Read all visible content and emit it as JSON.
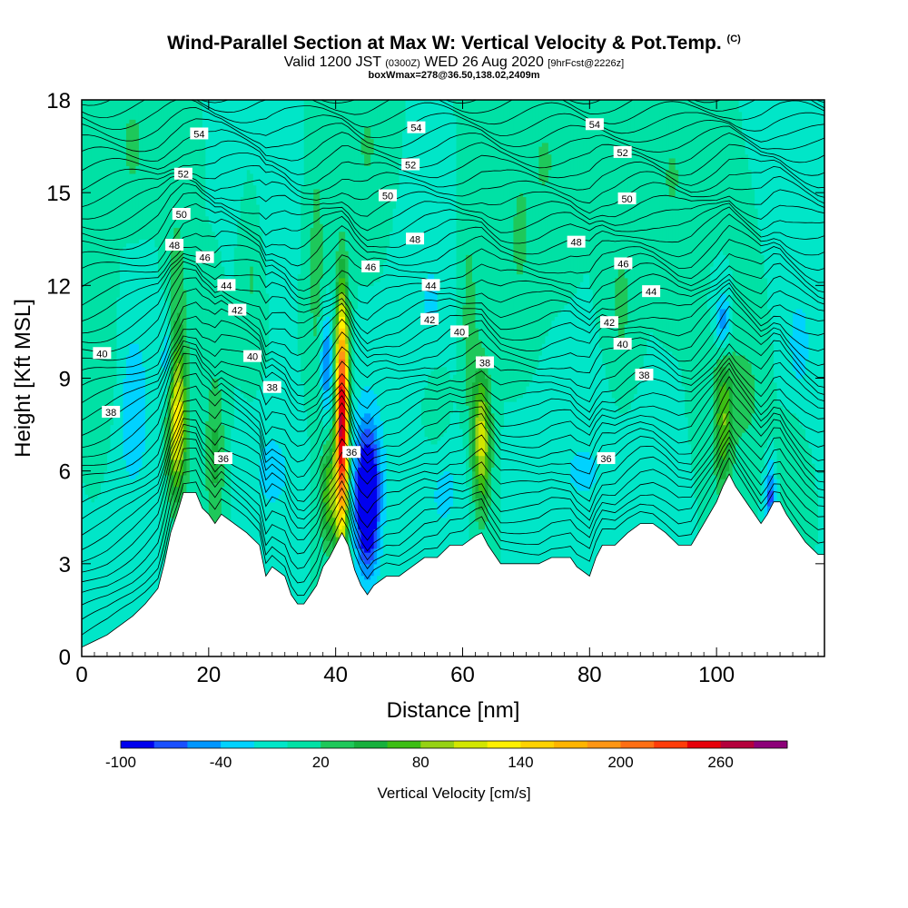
{
  "header": {
    "title": "Wind-Parallel Section at Max W: Vertical Velocity & Pot.Temp.",
    "title_mark": "(C)",
    "valid_pre": "Valid 1200 JST ",
    "valid_z": "(0300Z)",
    "valid_post": " WED 26 Aug 2020 ",
    "fcst": "[9hrFcst@2226z]",
    "box": "boxWmax=278@36.50,138.02,2409m"
  },
  "chart_data": {
    "type": "heatmap",
    "title": "Wind-Parallel Section at Max W: Vertical Velocity & Pot.Temp.",
    "xlabel": "Distance [nm]",
    "ylabel": "Height [Kft MSL]",
    "xlim": [
      0,
      117
    ],
    "ylim": [
      0,
      18
    ],
    "xticks": [
      0,
      20,
      40,
      60,
      80,
      100
    ],
    "yticks": [
      0,
      3,
      6,
      9,
      12,
      15,
      18
    ],
    "colorbar": {
      "label": "Vertical Velocity [cm/s]",
      "ticks": [
        -100,
        -40,
        20,
        80,
        140,
        200,
        260
      ],
      "levels": [
        -100,
        -80,
        -60,
        -40,
        -20,
        0,
        20,
        40,
        60,
        80,
        100,
        120,
        140,
        160,
        180,
        200,
        220,
        240,
        260,
        280,
        300
      ],
      "colors": [
        "#0000ee",
        "#1a50ff",
        "#0096ff",
        "#00d2ff",
        "#00e6c8",
        "#00e1a5",
        "#1ec85a",
        "#16b03c",
        "#3cbe14",
        "#96d214",
        "#d2e600",
        "#fff000",
        "#ffd200",
        "#ffb400",
        "#ff9614",
        "#ff6e14",
        "#ff3c0a",
        "#e6000a",
        "#b4003c",
        "#8c0078"
      ]
    },
    "background_velocity": 0,
    "terrain": {
      "x": [
        0,
        2,
        4,
        6,
        8,
        10,
        12,
        13,
        14,
        15,
        16,
        18,
        19,
        20,
        21,
        22,
        24,
        26,
        28,
        29,
        30,
        32,
        33,
        34,
        35,
        36,
        37,
        38,
        39,
        40,
        41,
        42,
        43,
        44,
        45,
        46,
        48,
        50,
        52,
        54,
        56,
        58,
        60,
        62,
        63,
        64,
        66,
        68,
        70,
        72,
        74,
        76,
        77,
        78,
        80,
        81,
        82,
        84,
        86,
        88,
        90,
        92,
        94,
        96,
        98,
        100,
        101,
        102,
        103,
        104,
        105,
        106,
        107,
        108,
        109,
        110,
        111,
        112,
        113,
        114,
        115,
        116,
        117
      ],
      "y": [
        0.3,
        0.5,
        0.7,
        1.0,
        1.3,
        1.7,
        2.2,
        3.0,
        4.0,
        4.6,
        5.3,
        5.3,
        4.8,
        4.6,
        4.3,
        4.6,
        4.3,
        4.0,
        3.6,
        2.6,
        2.9,
        2.6,
        2.0,
        1.7,
        1.7,
        2.0,
        2.3,
        2.9,
        3.2,
        3.6,
        4.0,
        3.6,
        2.8,
        2.3,
        2.0,
        2.3,
        2.6,
        2.6,
        2.9,
        3.2,
        3.2,
        3.6,
        3.6,
        3.9,
        4.0,
        3.6,
        3.0,
        3.0,
        3.0,
        3.0,
        3.2,
        3.2,
        3.2,
        2.9,
        2.6,
        3.2,
        3.6,
        3.6,
        4.0,
        4.3,
        4.3,
        4.0,
        3.6,
        3.6,
        4.3,
        5.0,
        5.5,
        5.9,
        5.5,
        5.2,
        4.9,
        4.6,
        4.3,
        4.6,
        5.0,
        5.0,
        4.6,
        4.3,
        4.0,
        3.7,
        3.5,
        3.3,
        3.3
      ]
    },
    "updrafts": [
      {
        "x": 15,
        "y": 7.5,
        "sx": 1.1,
        "sy": 1.6,
        "w": 110
      },
      {
        "x": 15,
        "y": 10.5,
        "sx": 1.2,
        "sy": 3.2,
        "w": 35
      },
      {
        "x": 21,
        "y": 6.5,
        "sx": 1.1,
        "sy": 2.0,
        "w": 45
      },
      {
        "x": 41,
        "y": 7.6,
        "sx": 0.7,
        "sy": 2.7,
        "w": 280
      },
      {
        "x": 39,
        "y": 5.2,
        "sx": 1.0,
        "sy": 1.2,
        "w": 80
      },
      {
        "x": 37,
        "y": 12.5,
        "sx": 1.0,
        "sy": 3.0,
        "w": 30
      },
      {
        "x": 63,
        "y": 7.0,
        "sx": 1.0,
        "sy": 1.6,
        "w": 110
      },
      {
        "x": 61,
        "y": 11.0,
        "sx": 1.0,
        "sy": 2.5,
        "w": 30
      },
      {
        "x": 101,
        "y": 7.5,
        "sx": 1.0,
        "sy": 1.6,
        "w": 70
      },
      {
        "x": 104,
        "y": 8.5,
        "sx": 2.5,
        "sy": 1.5,
        "w": 28
      },
      {
        "x": 27,
        "y": 13.0,
        "sx": 1.2,
        "sy": 2.5,
        "w": 26
      },
      {
        "x": 85,
        "y": 11.5,
        "sx": 1.2,
        "sy": 2.0,
        "w": 26
      },
      {
        "x": 69,
        "y": 13.5,
        "sx": 1.5,
        "sy": 2.0,
        "w": 24
      },
      {
        "x": 56,
        "y": 8.0,
        "sx": 1.5,
        "sy": 1.2,
        "w": 24
      },
      {
        "x": 4,
        "y": 9.5,
        "sx": 1.5,
        "sy": 2.0,
        "w": 24
      },
      {
        "x": 112,
        "y": 6.5,
        "sx": 1.5,
        "sy": 1.2,
        "w": 24
      },
      {
        "x": 8,
        "y": 16.5,
        "sx": 2.0,
        "sy": 1.5,
        "w": 24
      },
      {
        "x": 45,
        "y": 16.5,
        "sx": 1.8,
        "sy": 1.5,
        "w": 22
      },
      {
        "x": 73,
        "y": 16.0,
        "sx": 1.8,
        "sy": 1.5,
        "w": 22
      },
      {
        "x": 93,
        "y": 15.5,
        "sx": 1.8,
        "sy": 1.5,
        "w": 22
      }
    ],
    "downdrafts": [
      {
        "x": 45,
        "y": 4.8,
        "sx": 1.3,
        "sy": 1.5,
        "w": -115
      },
      {
        "x": 45,
        "y": 6.3,
        "sx": 2.0,
        "sy": 1.8,
        "w": -40
      },
      {
        "x": 38.5,
        "y": 9.5,
        "sx": 0.7,
        "sy": 1.2,
        "w": -65
      },
      {
        "x": 13.5,
        "y": 9.5,
        "sx": 0.7,
        "sy": 1.2,
        "w": -50
      },
      {
        "x": 101,
        "y": 10.8,
        "sx": 0.8,
        "sy": 0.7,
        "w": -60
      },
      {
        "x": 108.5,
        "y": 5.2,
        "sx": 0.6,
        "sy": 0.8,
        "w": -70
      },
      {
        "x": 57,
        "y": 5.5,
        "sx": 2.5,
        "sy": 1.5,
        "w": -25
      },
      {
        "x": 30,
        "y": 6.0,
        "sx": 3.0,
        "sy": 1.5,
        "w": -25
      },
      {
        "x": 79,
        "y": 6.0,
        "sx": 5.0,
        "sy": 1.5,
        "w": -22
      },
      {
        "x": 8,
        "y": 8.0,
        "sx": 2.5,
        "sy": 2.5,
        "w": -30
      },
      {
        "x": 29,
        "y": 15.5,
        "sx": 2.5,
        "sy": 2.0,
        "w": -22
      },
      {
        "x": 55,
        "y": 11.5,
        "sx": 2.5,
        "sy": 2.0,
        "w": -22
      },
      {
        "x": 113,
        "y": 10.0,
        "sx": 2.0,
        "sy": 2.0,
        "w": -25
      }
    ],
    "theta_contour_levels": [
      36,
      38,
      40,
      42,
      44,
      46,
      48,
      50,
      52,
      54
    ],
    "theta_contour_labels": [
      {
        "text": "54",
        "x": 18.5,
        "y": 16.9
      },
      {
        "text": "52",
        "x": 16.0,
        "y": 15.6
      },
      {
        "text": "50",
        "x": 15.7,
        "y": 14.3
      },
      {
        "text": "48",
        "x": 14.6,
        "y": 13.3
      },
      {
        "text": "46",
        "x": 19.4,
        "y": 12.9
      },
      {
        "text": "44",
        "x": 22.8,
        "y": 12.0
      },
      {
        "text": "42",
        "x": 24.5,
        "y": 11.2
      },
      {
        "text": "40",
        "x": 26.9,
        "y": 9.7
      },
      {
        "text": "38",
        "x": 30.0,
        "y": 8.7
      },
      {
        "text": "36",
        "x": 22.3,
        "y": 6.4
      },
      {
        "text": "40",
        "x": 3.2,
        "y": 9.8
      },
      {
        "text": "38",
        "x": 4.6,
        "y": 7.9
      },
      {
        "text": "54",
        "x": 52.7,
        "y": 17.1
      },
      {
        "text": "52",
        "x": 51.8,
        "y": 15.9
      },
      {
        "text": "50",
        "x": 48.2,
        "y": 14.9
      },
      {
        "text": "48",
        "x": 52.5,
        "y": 13.5
      },
      {
        "text": "46",
        "x": 45.5,
        "y": 12.6
      },
      {
        "text": "44",
        "x": 55.0,
        "y": 12.0
      },
      {
        "text": "42",
        "x": 54.8,
        "y": 10.9
      },
      {
        "text": "40",
        "x": 59.5,
        "y": 10.5
      },
      {
        "text": "38",
        "x": 63.5,
        "y": 9.5
      },
      {
        "text": "36",
        "x": 42.5,
        "y": 6.6
      },
      {
        "text": "54",
        "x": 80.8,
        "y": 17.2
      },
      {
        "text": "52",
        "x": 85.2,
        "y": 16.3
      },
      {
        "text": "50",
        "x": 85.9,
        "y": 14.8
      },
      {
        "text": "48",
        "x": 77.9,
        "y": 13.4
      },
      {
        "text": "46",
        "x": 85.3,
        "y": 12.7
      },
      {
        "text": "44",
        "x": 89.7,
        "y": 11.8
      },
      {
        "text": "42",
        "x": 83.1,
        "y": 10.8
      },
      {
        "text": "40",
        "x": 85.2,
        "y": 10.1
      },
      {
        "text": "38",
        "x": 88.6,
        "y": 9.1
      },
      {
        "text": "36",
        "x": 82.6,
        "y": 6.4
      }
    ]
  }
}
